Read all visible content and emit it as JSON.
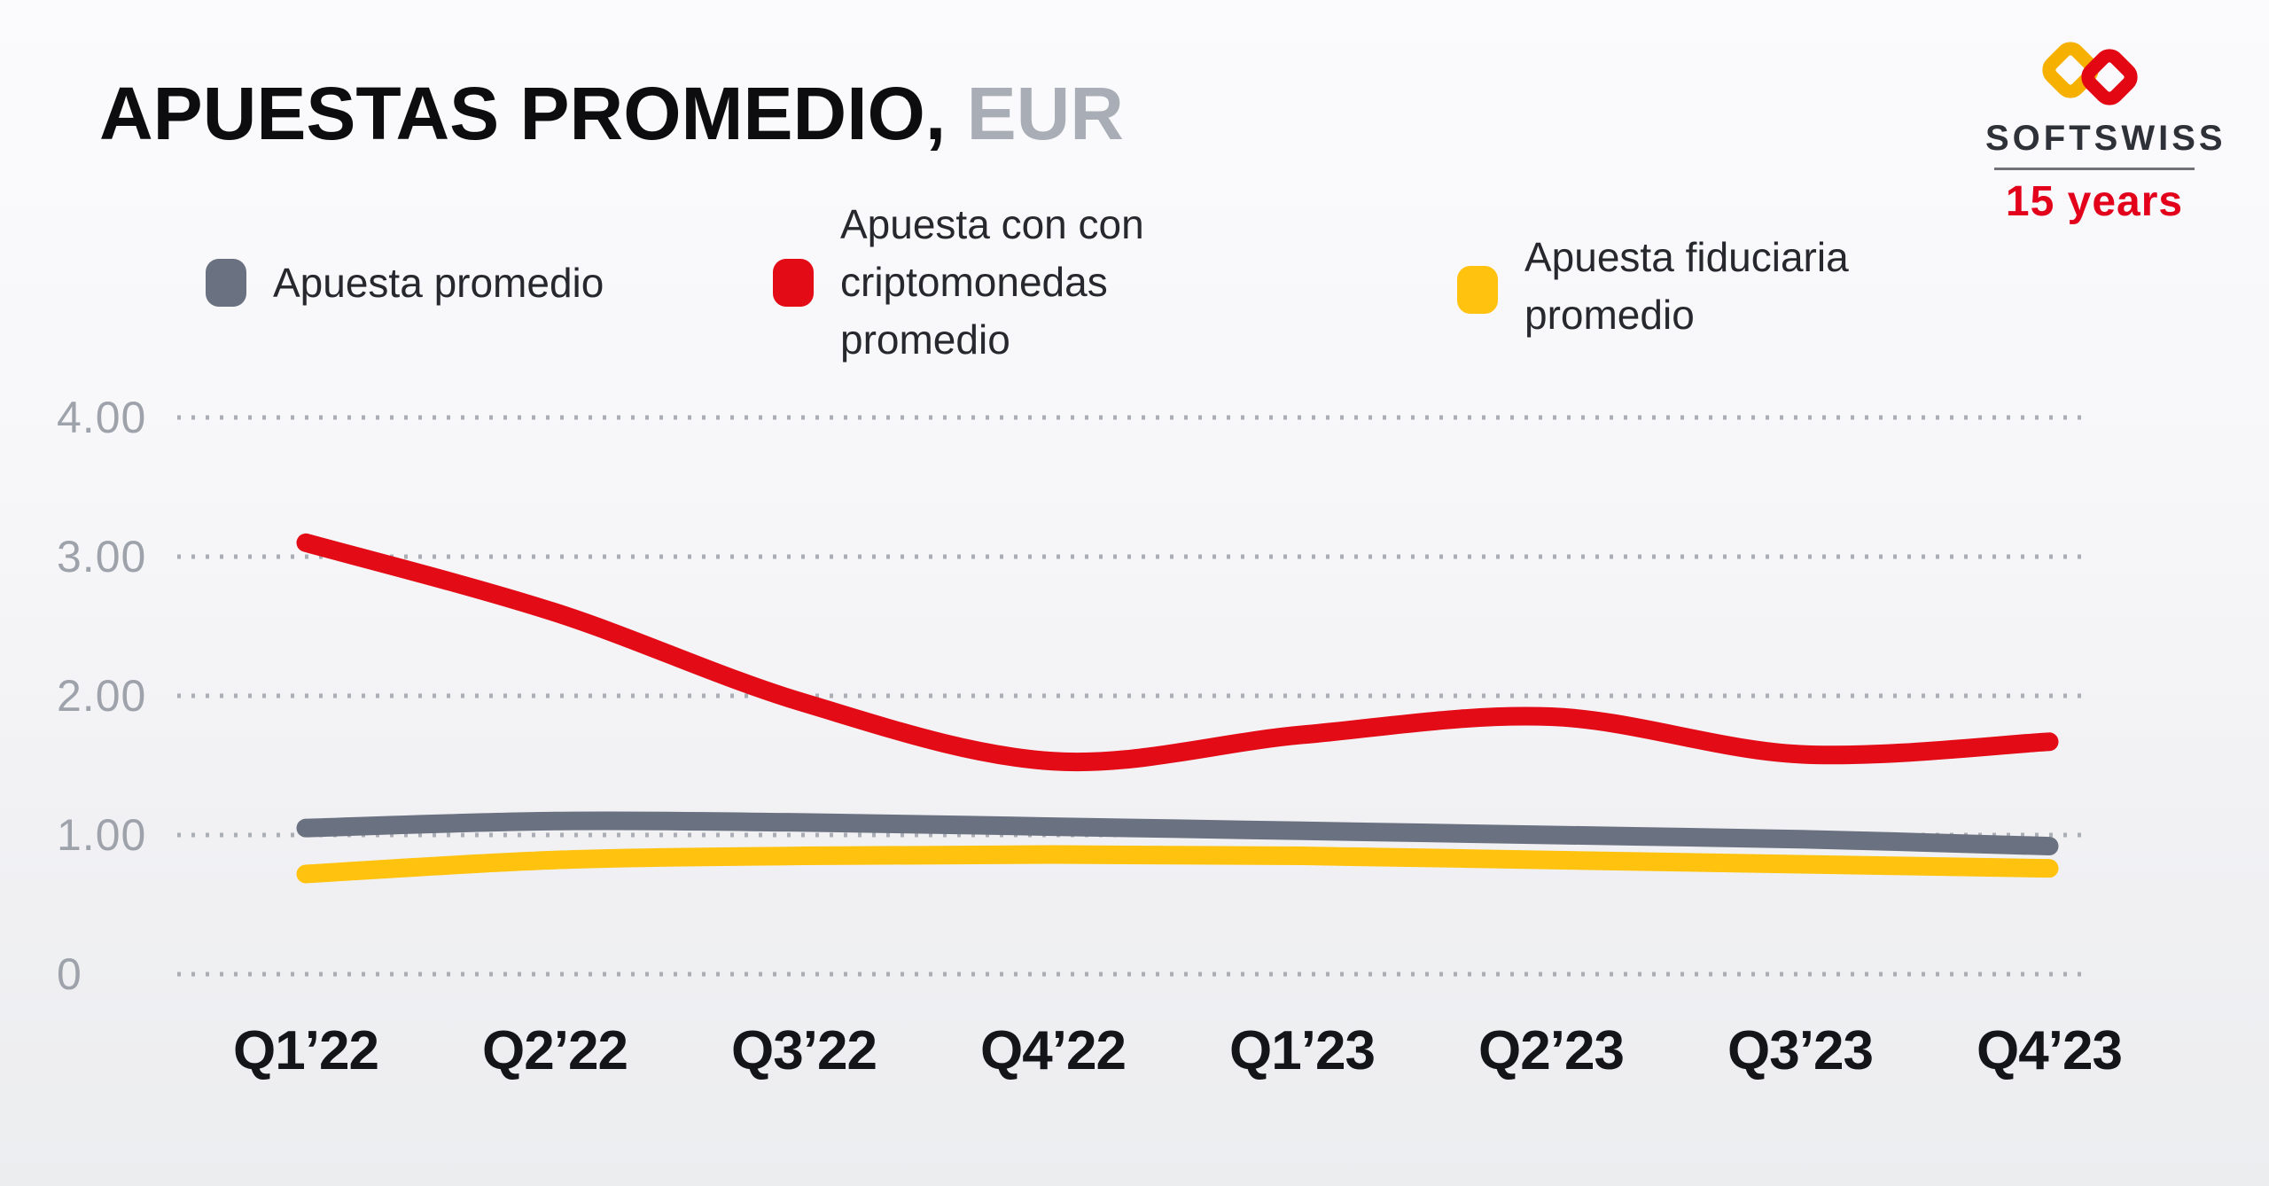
{
  "header": {
    "title": "APUESTAS PROMEDIO,",
    "unit": "EUR"
  },
  "logo": {
    "brand": "SOFTSWISS",
    "anniversary": "15 years",
    "diamond_yellow": "#F5B000",
    "diamond_red": "#E30613",
    "brand_color": "#2E3138",
    "anniversary_color": "#E2001A"
  },
  "legend": {
    "items": [
      {
        "label_lines": [
          "Apuesta promedio"
        ]
      },
      {
        "label_lines": [
          "Apuesta con  con",
          "criptomonedas",
          "promedio"
        ]
      },
      {
        "label_lines": [
          "Apuesta fiduciaria",
          "promedio"
        ]
      }
    ]
  },
  "chart_data": {
    "type": "line",
    "title": "APUESTAS PROMEDIO, EUR",
    "categories": [
      "Q1’22",
      "Q2’22",
      "Q3’22",
      "Q4’22",
      "Q1’23",
      "Q2’23",
      "Q3’23",
      "Q4’23"
    ],
    "y_ticks": [
      "4.00",
      "3.00",
      "2.00",
      "1.00",
      "0"
    ],
    "y_tick_values": [
      4,
      3,
      2,
      1,
      0
    ],
    "ylim": [
      0,
      4
    ],
    "grid": "horizontal-dotted",
    "grid_color": "#ABAEB4",
    "legend_position": "top",
    "series": [
      {
        "name": "Apuesta promedio",
        "color": "#6A7180",
        "values": [
          1.05,
          1.1,
          1.09,
          1.06,
          1.03,
          1.0,
          0.97,
          0.92
        ]
      },
      {
        "name": "Apuesta con  con criptomonedas promedio",
        "color": "#E30B16",
        "values": [
          3.1,
          2.6,
          1.95,
          1.53,
          1.72,
          1.85,
          1.58,
          1.67
        ]
      },
      {
        "name": "Apuesta fiduciaria promedio",
        "color": "#FFC20E",
        "values": [
          0.72,
          0.82,
          0.85,
          0.86,
          0.85,
          0.82,
          0.79,
          0.76
        ]
      }
    ]
  }
}
